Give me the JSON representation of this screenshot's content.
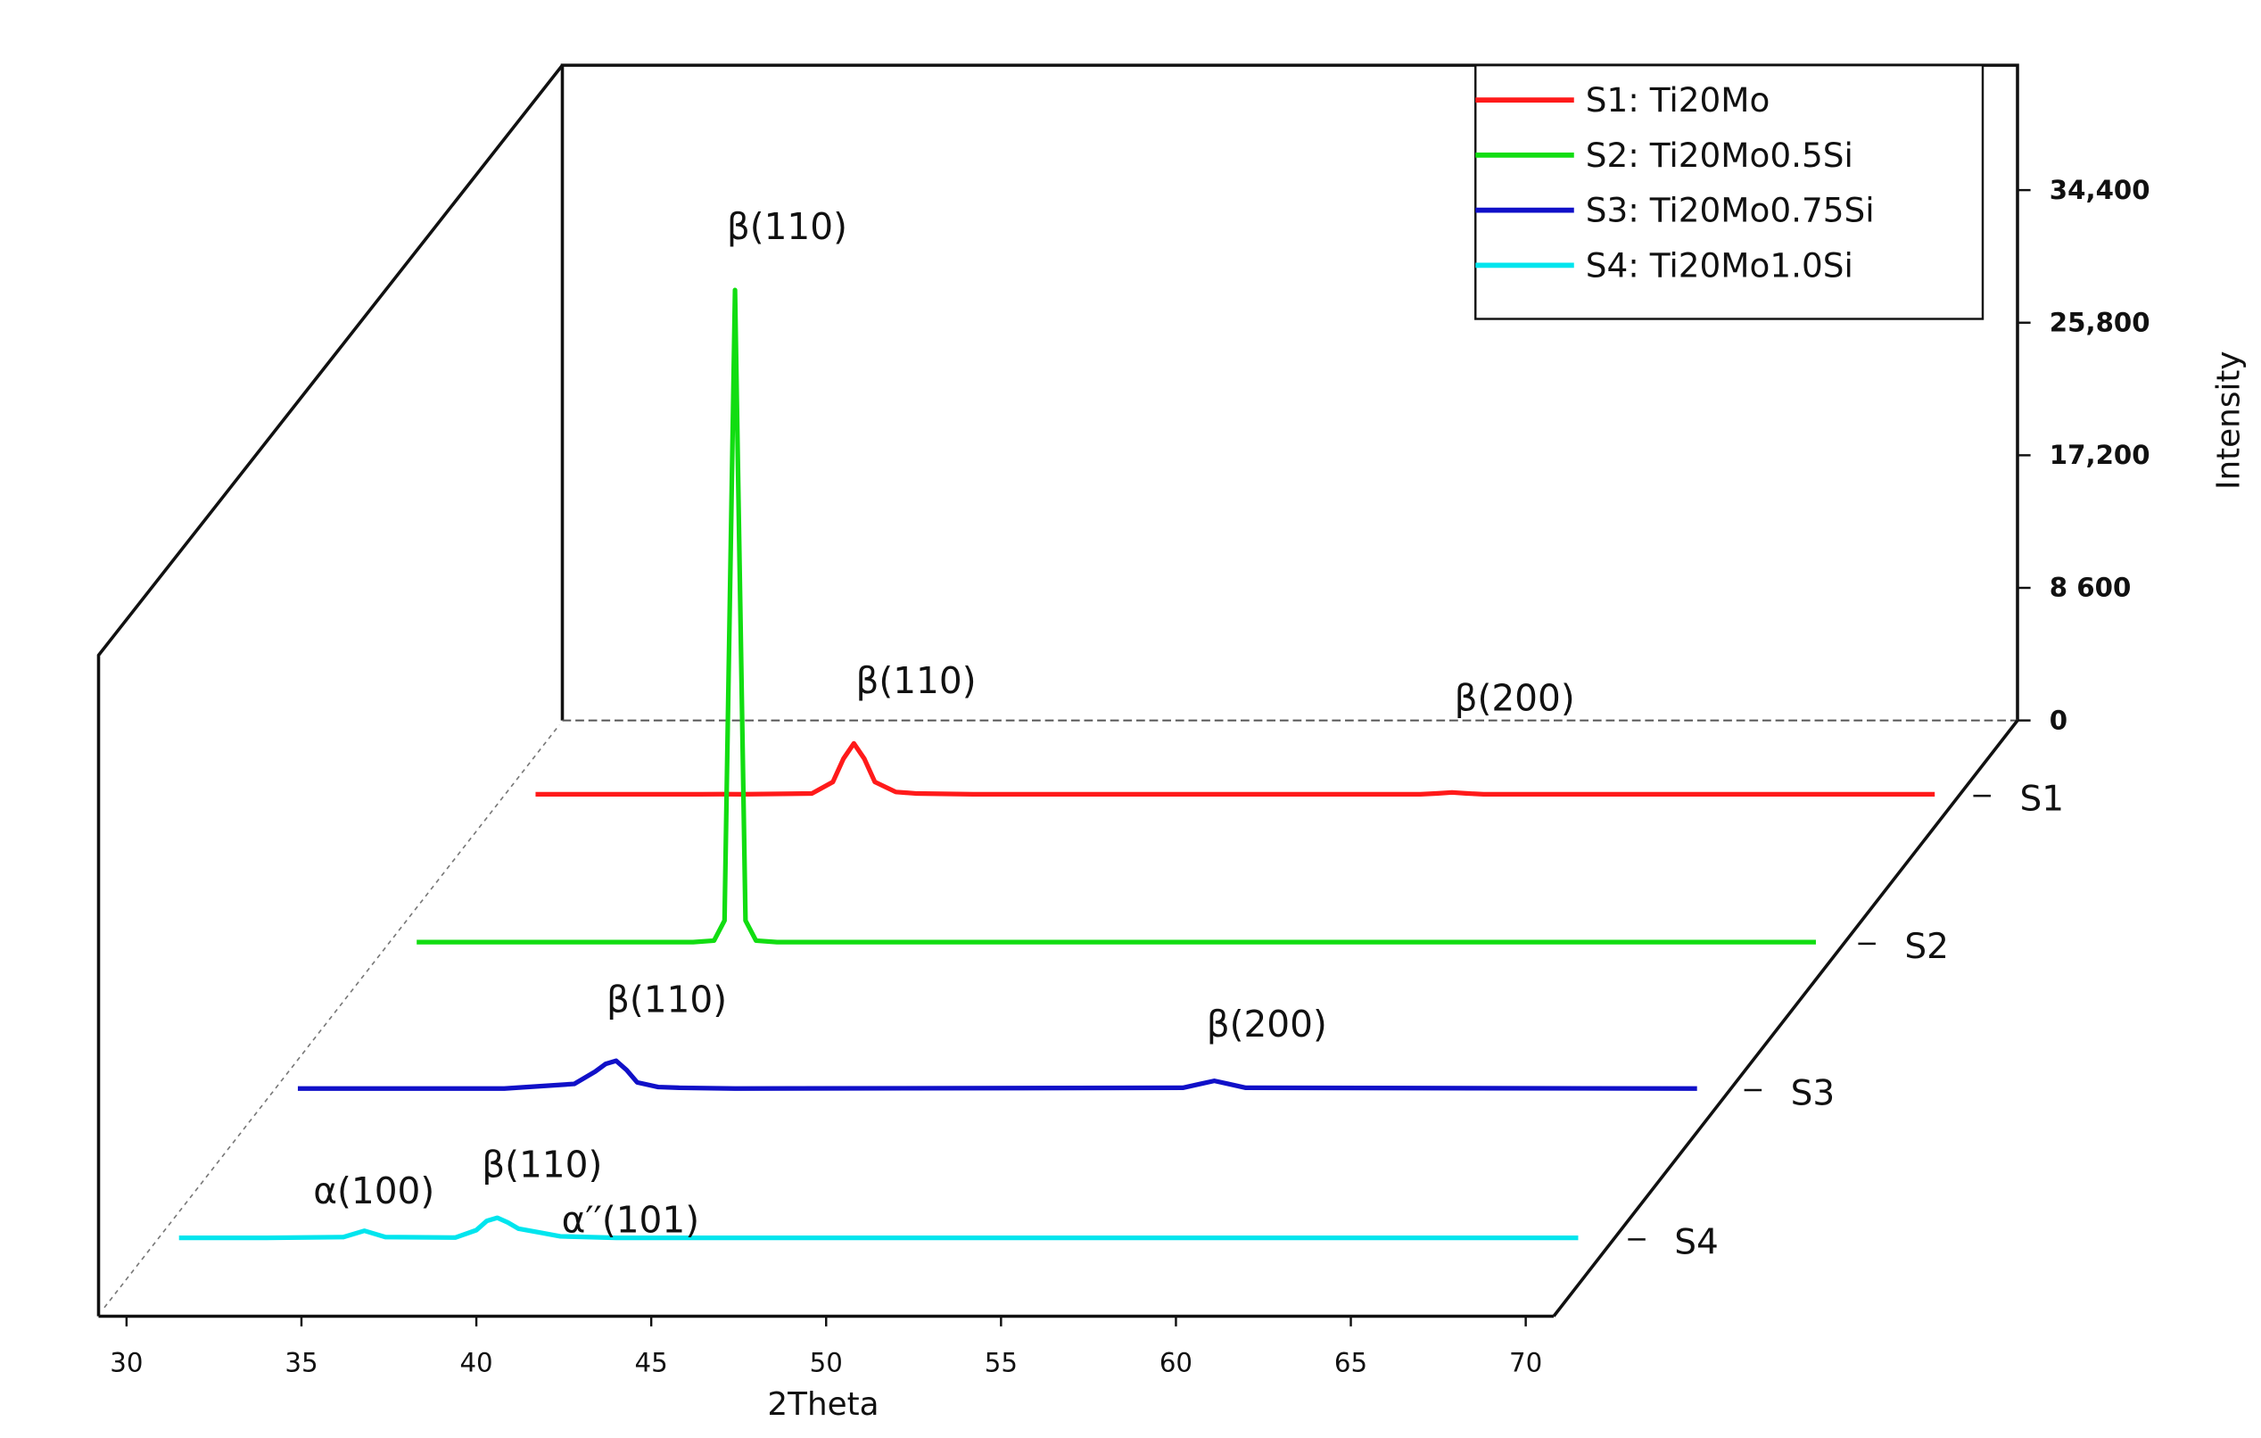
{
  "chart_data": {
    "type": "waterfall",
    "x_label": "2Theta",
    "y_label": "Intensity",
    "x": [
      31.5,
      34,
      36.2,
      36.8,
      37.4,
      39.4,
      40,
      40.3,
      40.6,
      40.9,
      41.2,
      41.8,
      42.4,
      44,
      56.8,
      57.3,
      57.7,
      58.1,
      58.6,
      71.5
    ],
    "series": [
      {
        "name": "S1: Ti20Mo",
        "color": "#ff1a1a",
        "values": [
          100,
          100,
          100,
          110,
          100,
          150,
          900,
          2400,
          3400,
          2400,
          900,
          250,
          150,
          100,
          100,
          160,
          220,
          160,
          100,
          100
        ]
      },
      {
        "name": "S2: Ti20Mo0.5Si",
        "color": "#11dd11",
        "values": [
          100,
          100,
          100,
          100,
          100,
          100,
          200,
          1500,
          42400,
          1500,
          200,
          100,
          100,
          100,
          100,
          100,
          100,
          100,
          100,
          100
        ]
      },
      {
        "name": "S3: Ti20Mo0.75Si",
        "color": "#1010c8",
        "values": [
          100,
          100,
          100,
          100,
          100,
          400,
          1200,
          1700,
          1900,
          1300,
          500,
          200,
          150,
          100,
          150,
          400,
          600,
          400,
          150,
          100
        ]
      },
      {
        "name": "S4: Ti20Mo1.0Si",
        "color": "#00e5ee",
        "values": [
          100,
          100,
          150,
          560,
          150,
          120,
          600,
          1200,
          1400,
          1100,
          700,
          450,
          200,
          100,
          100,
          100,
          100,
          100,
          100,
          100
        ]
      }
    ],
    "depth_labels": [
      "S1",
      "S2",
      "S3",
      "S4"
    ],
    "annotations": [
      "β(110)",
      "β(110)",
      "β(200)",
      "β(110)",
      "β(200)",
      "α(100)",
      "β(110)",
      "α′′(101)"
    ],
    "xlim": [
      29.2,
      70.8
    ],
    "xticks": [
      30,
      35,
      40,
      45,
      50,
      55,
      60,
      65,
      70
    ],
    "ylim": [
      0,
      42500
    ],
    "yticks": [
      0,
      {
        "value": 8600,
        "label": "8 600"
      },
      {
        "value": 17200,
        "label": "17,200"
      },
      {
        "value": 25800,
        "label": "25,800"
      },
      {
        "value": 34400,
        "label": "34,400"
      }
    ],
    "legend": "upper right"
  }
}
